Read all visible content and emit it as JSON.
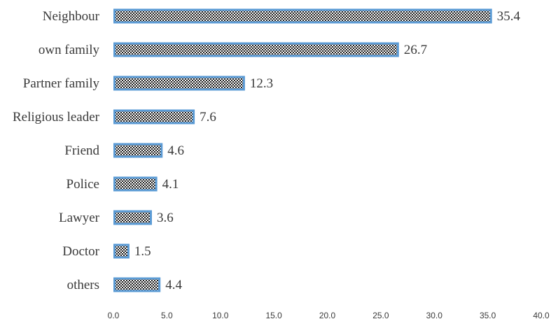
{
  "chart_data": {
    "type": "bar",
    "orientation": "horizontal",
    "categories": [
      "Neighbour",
      "own family",
      "Partner family",
      "Religious leader",
      "Friend",
      "Police",
      "Lawyer",
      "Doctor",
      "others"
    ],
    "values": [
      35.4,
      26.7,
      12.3,
      7.6,
      4.6,
      4.1,
      3.6,
      1.5,
      4.4
    ],
    "value_labels": [
      "35.4",
      "26.7",
      "12.3",
      "7.6",
      "4.6",
      "4.1",
      "3.6",
      "1.5",
      "4.4"
    ],
    "xlim": [
      0,
      40
    ],
    "x_ticks": [
      "0.0",
      "5.0",
      "10.0",
      "15.0",
      "20.0",
      "25.0",
      "30.0",
      "35.0",
      "40.0"
    ],
    "title": "",
    "xlabel": "",
    "ylabel": "",
    "grid": false,
    "legend": "none",
    "colors": {
      "bar_border": "#5b9bd5",
      "bar_pattern_dark": "#1a1a1a",
      "bar_pattern_light": "#ffffff"
    }
  }
}
